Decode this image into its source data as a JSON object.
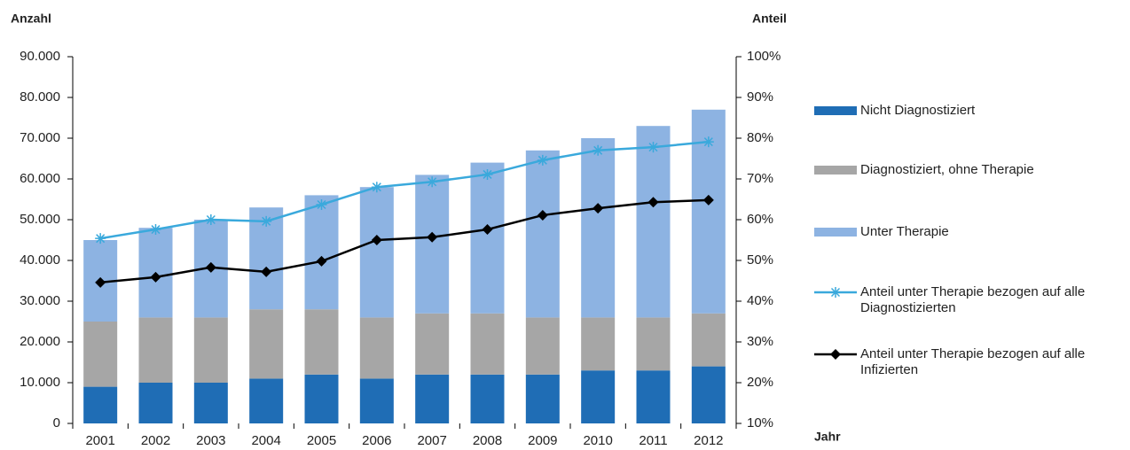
{
  "chart_data": {
    "type": "bar",
    "stacked": true,
    "y_label": "Anzahl",
    "y2_label": "Anteil",
    "x_label": "Jahr",
    "categories": [
      "2001",
      "2002",
      "2003",
      "2004",
      "2005",
      "2006",
      "2007",
      "2008",
      "2009",
      "2010",
      "2011",
      "2012"
    ],
    "series": [
      {
        "name": "Nicht Diagnostiziert",
        "color": "#1f6db5",
        "values": [
          9000,
          10000,
          10000,
          11000,
          12000,
          11000,
          12000,
          12000,
          12000,
          13000,
          13000,
          14000
        ]
      },
      {
        "name": "Diagnostiziert, ohne Therapie",
        "color": "#a6a6a6",
        "values": [
          16000,
          16000,
          16000,
          17000,
          16000,
          15000,
          15000,
          15000,
          14000,
          13000,
          13000,
          13000
        ]
      },
      {
        "name": "Unter Therapie",
        "color": "#8db3e2",
        "values": [
          20000,
          22000,
          24000,
          25000,
          28000,
          32000,
          34000,
          37000,
          41000,
          44000,
          47000,
          50000
        ]
      },
      {
        "name": "Anteil unter Therapie bezogen auf alle Diagnostizierten",
        "color": "#3aa9dc",
        "type": "line",
        "marker": "asterisk",
        "axis": "y2",
        "values": [
          55.4,
          57.6,
          60,
          59.6,
          63.7,
          68,
          69.3,
          71.1,
          74.6,
          77,
          77.8,
          79.1
        ]
      },
      {
        "name": "Anteil unter Therapie bezogen auf alle Infizierten",
        "color": "#000000",
        "type": "line",
        "marker": "diamond",
        "axis": "y2",
        "values": [
          44.6,
          45.9,
          48.3,
          47.2,
          49.8,
          55,
          55.7,
          57.6,
          61.1,
          62.8,
          64.3,
          64.8
        ]
      }
    ],
    "ylim": [
      0,
      90000
    ],
    "yticks": [
      0,
      {
        "value": 10000,
        "label": "10.000"
      },
      {
        "value": 20000,
        "label": "20.000"
      },
      {
        "value": 30000,
        "label": "30.000"
      },
      {
        "value": 40000,
        "label": "40.000"
      },
      {
        "value": 50000,
        "label": "50.000"
      },
      {
        "value": 60000,
        "label": "60.000"
      },
      {
        "value": 70000,
        "label": "70.000"
      },
      {
        "value": 80000,
        "label": "80.000"
      },
      {
        "value": 90000,
        "label": "90.000"
      }
    ],
    "y2lim": [
      10,
      100
    ],
    "y2ticks": [
      {
        "value": 10,
        "label": "10%"
      },
      {
        "value": 20,
        "label": "20%"
      },
      {
        "value": 30,
        "label": "30%"
      },
      {
        "value": 40,
        "label": "40%"
      },
      {
        "value": 50,
        "label": "50%"
      },
      {
        "value": 60,
        "label": "60%"
      },
      {
        "value": 70,
        "label": "70%"
      },
      {
        "value": 80,
        "label": "80%"
      },
      {
        "value": 90,
        "label": "90%"
      },
      {
        "value": 100,
        "label": "100%"
      }
    ],
    "grid": false,
    "legend": "right"
  }
}
